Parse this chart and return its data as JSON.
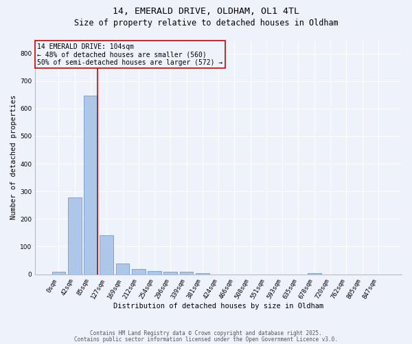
{
  "title1": "14, EMERALD DRIVE, OLDHAM, OL1 4TL",
  "title2": "Size of property relative to detached houses in Oldham",
  "xlabel": "Distribution of detached houses by size in Oldham",
  "ylabel": "Number of detached properties",
  "bar_values": [
    8,
    278,
    648,
    140,
    38,
    18,
    12,
    10,
    8,
    5,
    0,
    0,
    0,
    0,
    0,
    0,
    3,
    0,
    0,
    0,
    0
  ],
  "x_labels": [
    "0sqm",
    "42sqm",
    "85sqm",
    "127sqm",
    "169sqm",
    "212sqm",
    "254sqm",
    "296sqm",
    "339sqm",
    "381sqm",
    "424sqm",
    "466sqm",
    "508sqm",
    "551sqm",
    "593sqm",
    "635sqm",
    "678sqm",
    "720sqm",
    "762sqm",
    "805sqm",
    "847sqm"
  ],
  "bar_color": "#aec6e8",
  "bar_edge_color": "#5b8fc9",
  "background_color": "#eef3fb",
  "grid_color": "#ffffff",
  "vline_x": 2.452,
  "vline_color": "#cc0000",
  "annotation_text": "14 EMERALD DRIVE: 104sqm\n← 48% of detached houses are smaller (560)\n50% of semi-detached houses are larger (572) →",
  "annotation_box_color": "#cc0000",
  "ylim": [
    0,
    850
  ],
  "yticks": [
    0,
    100,
    200,
    300,
    400,
    500,
    600,
    700,
    800
  ],
  "title_fontsize": 9.5,
  "subtitle_fontsize": 8.5,
  "axis_label_fontsize": 7.5,
  "tick_fontsize": 6.5,
  "annotation_fontsize": 7,
  "footer_fontsize": 5.5,
  "footer_text1": "Contains HM Land Registry data © Crown copyright and database right 2025.",
  "footer_text2": "Contains public sector information licensed under the Open Government Licence v3.0."
}
